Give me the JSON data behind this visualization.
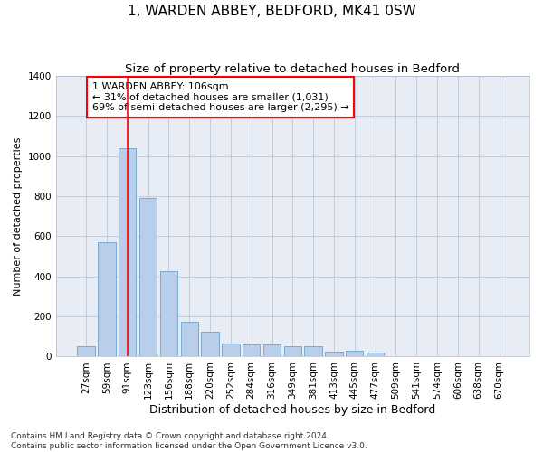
{
  "title": "1, WARDEN ABBEY, BEDFORD, MK41 0SW",
  "subtitle": "Size of property relative to detached houses in Bedford",
  "xlabel": "Distribution of detached houses by size in Bedford",
  "ylabel": "Number of detached properties",
  "categories": [
    "27sqm",
    "59sqm",
    "91sqm",
    "123sqm",
    "156sqm",
    "188sqm",
    "220sqm",
    "252sqm",
    "284sqm",
    "316sqm",
    "349sqm",
    "381sqm",
    "413sqm",
    "445sqm",
    "477sqm",
    "509sqm",
    "541sqm",
    "574sqm",
    "606sqm",
    "638sqm",
    "670sqm"
  ],
  "values": [
    50,
    570,
    1040,
    790,
    425,
    175,
    125,
    65,
    60,
    60,
    50,
    50,
    25,
    30,
    20,
    0,
    0,
    0,
    0,
    0,
    0
  ],
  "bar_color": "#b8ceea",
  "bar_edge_color": "#7aaad0",
  "vline_x_index": 2,
  "vline_color": "red",
  "annotation_text": "1 WARDEN ABBEY: 106sqm\n← 31% of detached houses are smaller (1,031)\n69% of semi-detached houses are larger (2,295) →",
  "annotation_box_color": "white",
  "annotation_box_edge_color": "red",
  "ylim": [
    0,
    1400
  ],
  "yticks": [
    0,
    200,
    400,
    600,
    800,
    1000,
    1200,
    1400
  ],
  "grid_color": "#c0ccdf",
  "bg_color": "#e8edf5",
  "footer": "Contains HM Land Registry data © Crown copyright and database right 2024.\nContains public sector information licensed under the Open Government Licence v3.0.",
  "title_fontsize": 11,
  "subtitle_fontsize": 9.5,
  "xlabel_fontsize": 9,
  "ylabel_fontsize": 8,
  "tick_fontsize": 7.5,
  "annotation_fontsize": 8,
  "footer_fontsize": 6.5
}
